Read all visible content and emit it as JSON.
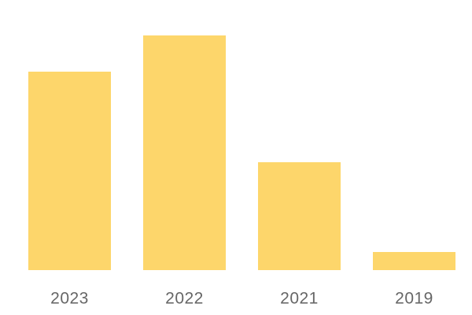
{
  "chart_data": {
    "type": "bar",
    "categories": [
      "2023",
      "2022",
      "2021",
      "2019"
    ],
    "values": [
      252,
      298,
      137,
      23
    ],
    "color": "#fdd66b"
  }
}
